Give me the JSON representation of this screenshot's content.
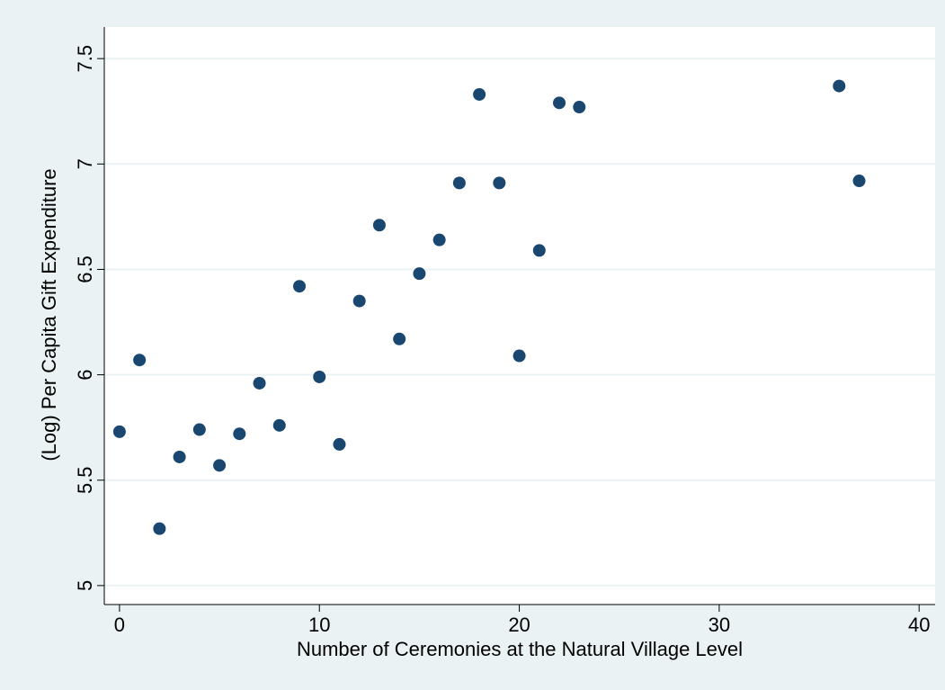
{
  "chart_data": {
    "type": "scatter",
    "xlabel": "Number of Ceremonies at the Natural Village Level",
    "ylabel": "(Log) Per Capita Gift Expenditure",
    "color": "#1a476f",
    "grid": true,
    "x": [
      0,
      1,
      2,
      3,
      4,
      5,
      6,
      7,
      8,
      9,
      10,
      11,
      12,
      13,
      14,
      15,
      16,
      17,
      18,
      19,
      20,
      21,
      22,
      23,
      36,
      37
    ],
    "values": [
      5.73,
      6.07,
      5.27,
      5.61,
      5.74,
      5.57,
      5.72,
      5.96,
      5.76,
      6.42,
      5.99,
      5.67,
      6.35,
      6.71,
      6.17,
      6.48,
      6.64,
      6.91,
      7.33,
      6.91,
      6.09,
      6.59,
      7.29,
      7.27,
      7.37,
      6.92
    ],
    "xlim": [
      -0.76,
      40.8
    ],
    "ylim": [
      4.91,
      7.65
    ],
    "xticks": [
      0,
      10,
      20,
      30,
      40
    ],
    "yticks": [
      5,
      5.5,
      6,
      6.5,
      7,
      7.5
    ]
  }
}
